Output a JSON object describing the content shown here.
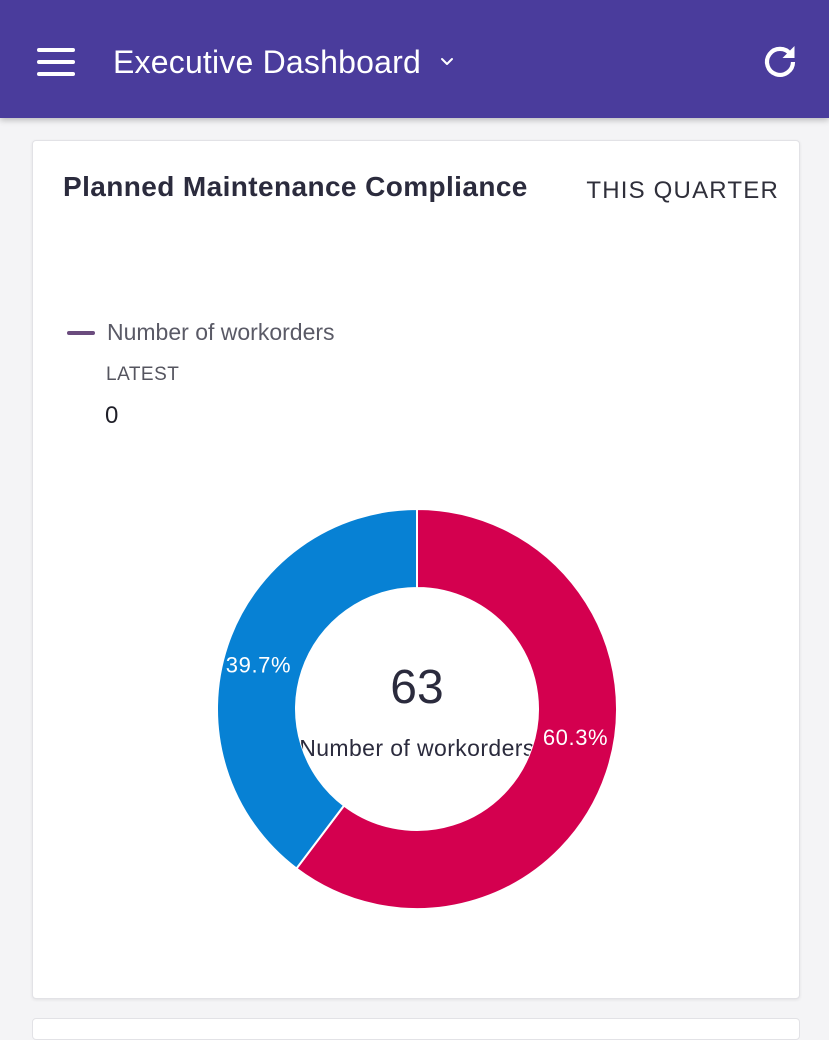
{
  "header": {
    "title": "Executive Dashboard",
    "menu_icon": "hamburger-menu-icon",
    "dropdown_icon": "chevron-down-icon",
    "refresh_icon": "refresh-icon",
    "background_color": "#4a3c9c"
  },
  "card": {
    "title": "Planned Maintenance Compliance",
    "range_label": "THIS QUARTER",
    "legend": {
      "label": "Number of workorders",
      "color": "#6b4c7e"
    },
    "latest": {
      "label": "LATEST",
      "value": "0"
    }
  },
  "chart_data": {
    "type": "pie",
    "variant": "donut",
    "title": "Planned Maintenance Compliance",
    "center_value": "63",
    "center_label": "Number of workorders",
    "slices": [
      {
        "percent": 60.3,
        "label": "60.3%",
        "color": "#d4004f"
      },
      {
        "percent": 39.7,
        "label": "39.7%",
        "color": "#0781d4"
      }
    ],
    "start_angle_deg": 0,
    "direction": "clockwise"
  }
}
